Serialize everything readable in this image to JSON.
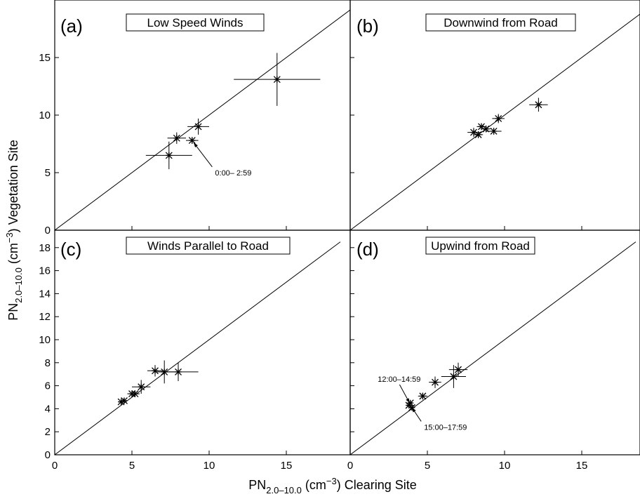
{
  "figure": {
    "ylabel": {
      "prefix": "PN",
      "sub": "2.0–10.0",
      "mid": " (cm",
      "sup": "−3",
      "suffix": ") Vegetation Site"
    },
    "xlabel": {
      "prefix": "PN",
      "sub": "2.0–10.0",
      "mid": " (cm",
      "sup": "−3",
      "suffix": ") Clearing Site"
    }
  },
  "chart_data": [
    {
      "type": "scatter",
      "panel": "(a)",
      "title": "Low Speed Winds",
      "xlim": [
        0,
        19
      ],
      "ylim": [
        0,
        19
      ],
      "xticks": [],
      "yticks": [
        0,
        5,
        10,
        15
      ],
      "xticklabels": [],
      "yticklabels": [
        "0",
        "5",
        "10",
        "15"
      ],
      "reference_line": "y = x",
      "points": [
        {
          "x": 7.4,
          "y": 6.5,
          "xerr": 1.5,
          "yerr": 1.2
        },
        {
          "x": 7.9,
          "y": 8.0,
          "xerr": 0.6,
          "yerr": 0.5
        },
        {
          "x": 8.9,
          "y": 7.8,
          "xerr": 0.4,
          "yerr": 0.3
        },
        {
          "x": 9.3,
          "y": 9.0,
          "xerr": 0.7,
          "yerr": 0.7
        },
        {
          "x": 14.4,
          "y": 13.1,
          "xerr": 2.8,
          "yerr": 2.3
        }
      ],
      "annotations": [
        {
          "text": "0:00– 2:59",
          "x": 9.0,
          "y": 7.6,
          "tx": 10.2,
          "ty": 5.5
        }
      ]
    },
    {
      "type": "scatter",
      "panel": "(b)",
      "title": "Downwind from Road",
      "xlim": [
        0,
        19
      ],
      "ylim": [
        0,
        19
      ],
      "xticks": [],
      "yticks": [],
      "xticklabels": [],
      "yticklabels": [],
      "reference_line": "y = x",
      "points": [
        {
          "x": 8.0,
          "y": 8.5,
          "xerr": 0.4,
          "yerr": 0.4
        },
        {
          "x": 8.3,
          "y": 8.3,
          "xerr": 0.3,
          "yerr": 0.3
        },
        {
          "x": 8.5,
          "y": 9.0,
          "xerr": 0.3,
          "yerr": 0.3
        },
        {
          "x": 8.8,
          "y": 8.8,
          "xerr": 0.3,
          "yerr": 0.3
        },
        {
          "x": 9.3,
          "y": 8.6,
          "xerr": 0.5,
          "yerr": 0.3
        },
        {
          "x": 9.6,
          "y": 9.7,
          "xerr": 0.4,
          "yerr": 0.4
        },
        {
          "x": 12.2,
          "y": 10.9,
          "xerr": 0.6,
          "yerr": 0.6
        }
      ],
      "annotations": []
    },
    {
      "type": "scatter",
      "panel": "(c)",
      "title": "Winds Parallel to Road",
      "xlim": [
        0,
        19
      ],
      "ylim": [
        0,
        19
      ],
      "xticks": [
        0,
        5,
        10,
        15
      ],
      "yticks": [
        0,
        2,
        4,
        6,
        8,
        10,
        12,
        14,
        16,
        18
      ],
      "xticklabels": [
        "0",
        "5",
        "10",
        "15"
      ],
      "yticklabels": [
        "0",
        "2",
        "4",
        "6",
        "8",
        "10",
        "12",
        "14",
        "16",
        "18"
      ],
      "reference_line": "y = x",
      "points": [
        {
          "x": 4.3,
          "y": 4.6,
          "xerr": 0.2,
          "yerr": 0.2
        },
        {
          "x": 4.5,
          "y": 4.7,
          "xerr": 0.2,
          "yerr": 0.2
        },
        {
          "x": 5.0,
          "y": 5.3,
          "xerr": 0.3,
          "yerr": 0.3
        },
        {
          "x": 5.2,
          "y": 5.3,
          "xerr": 0.3,
          "yerr": 0.3
        },
        {
          "x": 5.6,
          "y": 5.9,
          "xerr": 0.6,
          "yerr": 0.6
        },
        {
          "x": 6.5,
          "y": 7.3,
          "xerr": 0.5,
          "yerr": 0.5
        },
        {
          "x": 7.1,
          "y": 7.2,
          "xerr": 0.7,
          "yerr": 1.0
        },
        {
          "x": 8.0,
          "y": 7.2,
          "xerr": 1.3,
          "yerr": 0.8
        }
      ],
      "annotations": []
    },
    {
      "type": "scatter",
      "panel": "(d)",
      "title": "Upwind from Road",
      "xlim": [
        0,
        19
      ],
      "ylim": [
        0,
        19
      ],
      "xticks": [
        0,
        5,
        10,
        15
      ],
      "yticks": [],
      "xticklabels": [
        "0",
        "5",
        "10",
        "15"
      ],
      "yticklabels": [],
      "reference_line": "y = x",
      "points": [
        {
          "x": 3.8,
          "y": 4.3,
          "xerr": 0.15,
          "yerr": 0.2
        },
        {
          "x": 3.9,
          "y": 4.5,
          "xerr": 0.15,
          "yerr": 0.2
        },
        {
          "x": 4.0,
          "y": 4.1,
          "xerr": 0.15,
          "yerr": 0.2
        },
        {
          "x": 4.7,
          "y": 5.1,
          "xerr": 0.3,
          "yerr": 0.3
        },
        {
          "x": 5.5,
          "y": 6.3,
          "xerr": 0.4,
          "yerr": 0.5
        },
        {
          "x": 6.7,
          "y": 6.8,
          "xerr": 0.8,
          "yerr": 1.0
        },
        {
          "x": 7.0,
          "y": 7.4,
          "xerr": 0.6,
          "yerr": 0.6
        }
      ],
      "annotations": [
        {
          "text": "12:00–14:59",
          "x": 3.85,
          "y": 4.5,
          "tx": 3.2,
          "ty": 6.1
        },
        {
          "text": "15:00–17:59",
          "x": 4.0,
          "y": 4.1,
          "tx": 4.6,
          "ty": 2.9
        }
      ]
    }
  ]
}
